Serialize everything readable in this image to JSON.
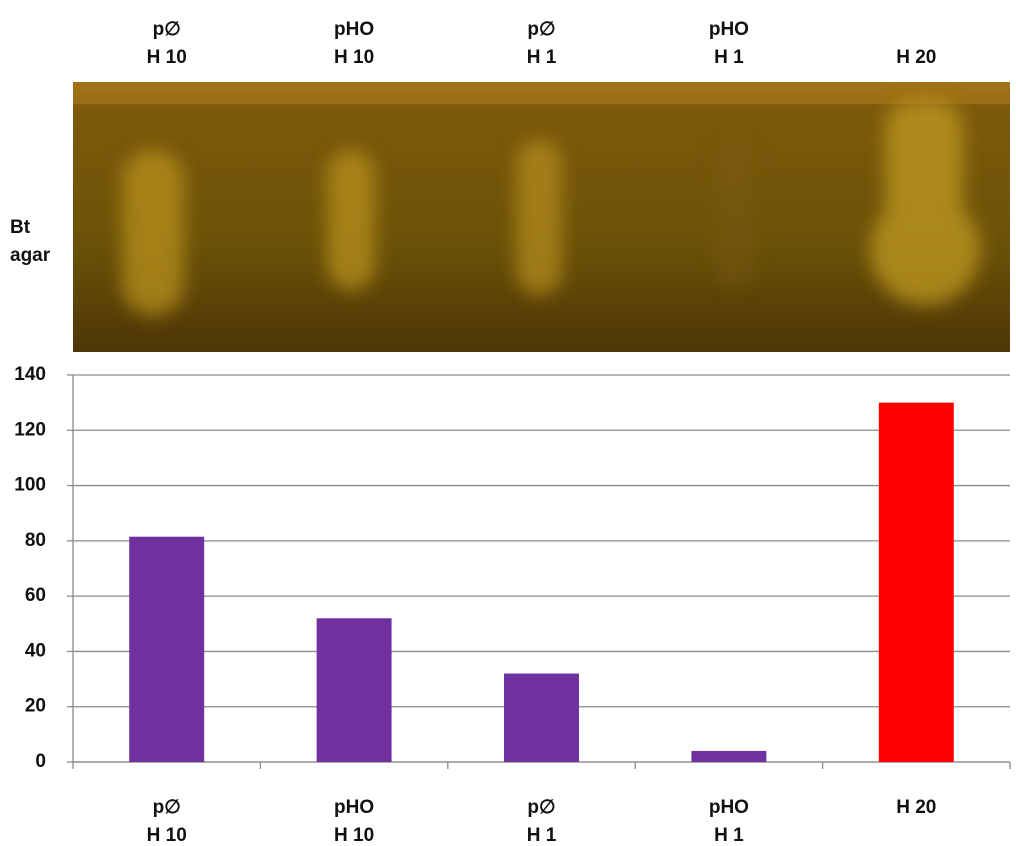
{
  "chart_data": {
    "type": "bar",
    "image_label": [
      "Bt",
      "agar"
    ],
    "categories": [
      [
        "p∅",
        "H 10"
      ],
      [
        "pHO",
        "H 10"
      ],
      [
        "p∅",
        "H 1"
      ],
      [
        "pHO",
        "H 1"
      ],
      [
        "H 20"
      ]
    ],
    "values": [
      81.5,
      52,
      32,
      4,
      130
    ],
    "colors": [
      "#7030a0",
      "#7030a0",
      "#7030a0",
      "#7030a0",
      "#ff0000"
    ],
    "ylim": [
      0,
      140
    ],
    "yticks": [
      0,
      20,
      40,
      60,
      80,
      100,
      120,
      140
    ],
    "grid": true
  }
}
